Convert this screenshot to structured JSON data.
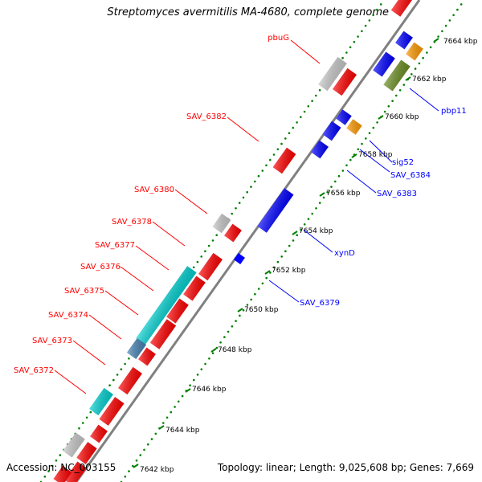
{
  "title": "Streptomyces avermitilis MA-4680, complete genome",
  "footer": {
    "accession": "Accession: NC_003155",
    "topology": "Topology: linear; Length: 9,025,608 bp; Genes: 7,669"
  },
  "scale_labels": [
    "7642 kbp",
    "7644 kbp",
    "7646 kbp",
    "7648 kbp",
    "7650 kbp",
    "7652 kbp",
    "7654 kbp",
    "7656 kbp",
    "7658 kbp",
    "7660 kbp",
    "7662 kbp",
    "7664 kbp"
  ],
  "gene_labels_left": [
    "pbuG",
    "SAV_6382",
    "SAV_6380",
    "SAV_6378",
    "SAV_6377",
    "SAV_6376",
    "SAV_6375",
    "SAV_6374",
    "SAV_6373",
    "SAV_6372"
  ],
  "gene_labels_right": [
    "pbp11",
    "sig52",
    "SAV_6384",
    "SAV_6383",
    "xynD",
    "SAV_6379"
  ],
  "colors": {
    "forward_gene": "#ff0000",
    "reverse_gene": "#0000ff",
    "cyan_gene": "#00d0d0",
    "grey_gene": "#c8c8c8",
    "orange_gene": "#ff9900",
    "olive_gene": "#6b8e23",
    "steel_gene": "#4682b4",
    "backbone": "#808080",
    "tick": "#008000"
  }
}
